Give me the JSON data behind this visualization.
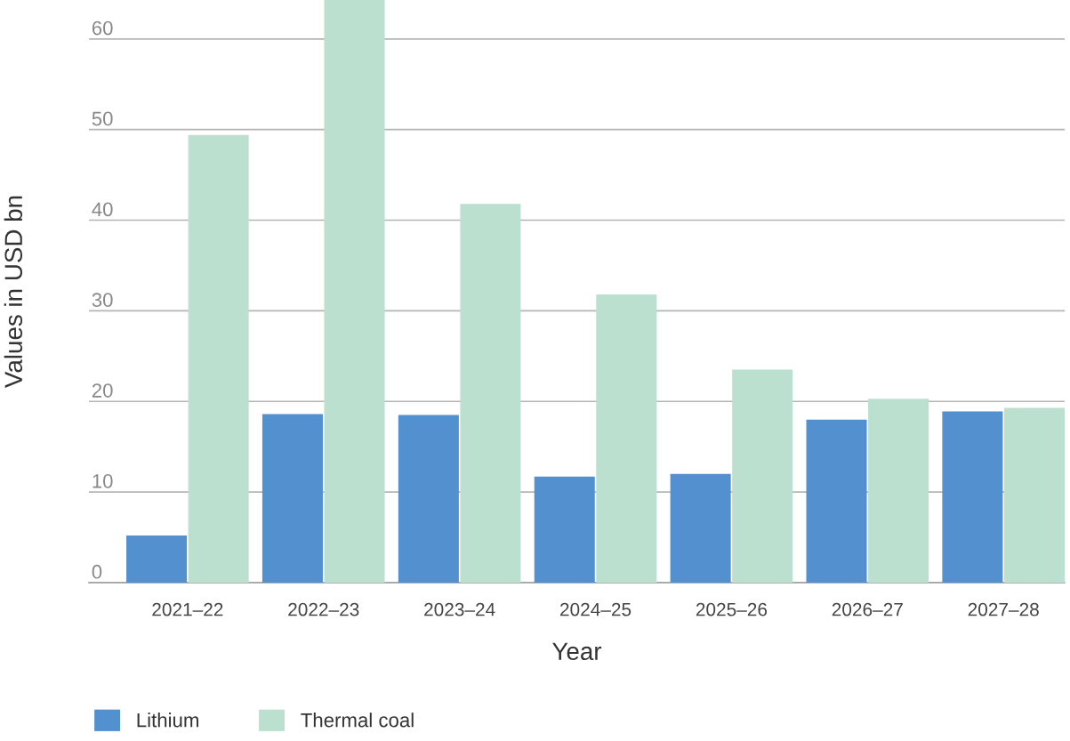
{
  "chart_data": {
    "type": "bar",
    "xlabel": "Year",
    "ylabel": "Values in USD bn",
    "categories": [
      "2021–22",
      "2022–23",
      "2023–24",
      "2024–25",
      "2025–26",
      "2026–27",
      "2027–28"
    ],
    "series": [
      {
        "name": "Lithium",
        "color": "#5390d0",
        "values": [
          5.2,
          18.6,
          18.5,
          11.7,
          12.0,
          18.0,
          18.9
        ]
      },
      {
        "name": "Thermal coal",
        "color": "#bbe0cf",
        "values": [
          49.4,
          64.3,
          41.8,
          31.8,
          23.5,
          20.3,
          19.3
        ]
      }
    ],
    "ylim": [
      0,
      64.3
    ],
    "yticks": [
      0,
      10,
      20,
      30,
      40,
      50,
      60
    ],
    "grid": "y",
    "legend": "bottom left"
  }
}
